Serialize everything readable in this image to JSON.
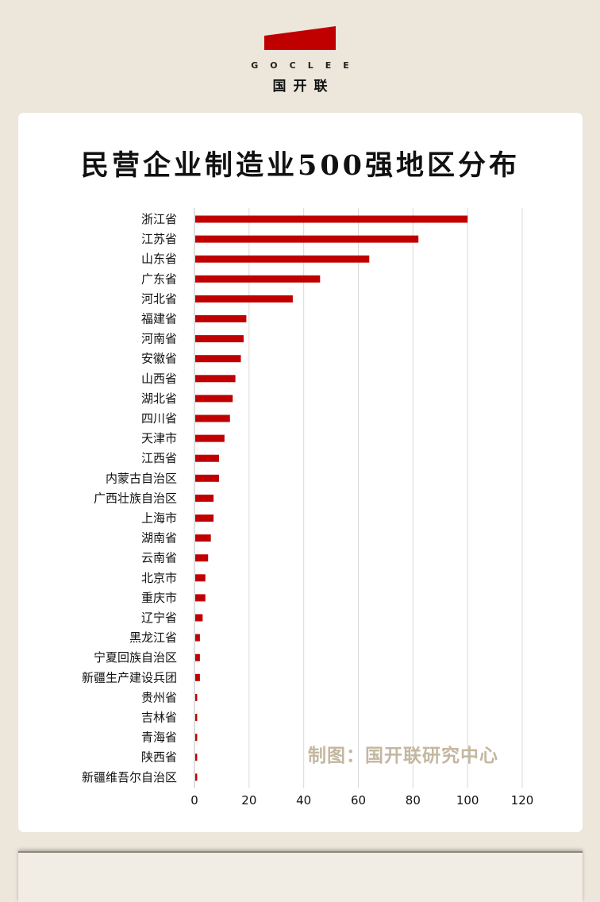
{
  "brand": {
    "latin": "GOCLEE",
    "chinese": "国开联",
    "accent_color": "#c00000"
  },
  "watermark": "制图：国开联研究中心",
  "chart_data": {
    "type": "bar",
    "orientation": "horizontal",
    "title": "民营企业制造业500强地区分布",
    "xlabel": "",
    "ylabel": "",
    "xlim": [
      0,
      120
    ],
    "xticks": [
      0,
      20,
      40,
      60,
      80,
      100,
      120
    ],
    "grid": true,
    "bar_color": "#c00000",
    "categories": [
      "浙江省",
      "江苏省",
      "山东省",
      "广东省",
      "河北省",
      "福建省",
      "河南省",
      "安徽省",
      "山西省",
      "湖北省",
      "四川省",
      "天津市",
      "江西省",
      "内蒙古自治区",
      "广西壮族自治区",
      "上海市",
      "湖南省",
      "云南省",
      "北京市",
      "重庆市",
      "辽宁省",
      "黑龙江省",
      "宁夏回族自治区",
      "新疆生产建设兵团",
      "贵州省",
      "吉林省",
      "青海省",
      "陕西省",
      "新疆维吾尔自治区"
    ],
    "values": [
      100,
      82,
      64,
      46,
      36,
      19,
      18,
      17,
      15,
      14,
      13,
      11,
      9,
      9,
      7,
      7,
      6,
      5,
      4,
      4,
      3,
      2,
      2,
      2,
      1,
      1,
      1,
      1,
      1
    ]
  }
}
